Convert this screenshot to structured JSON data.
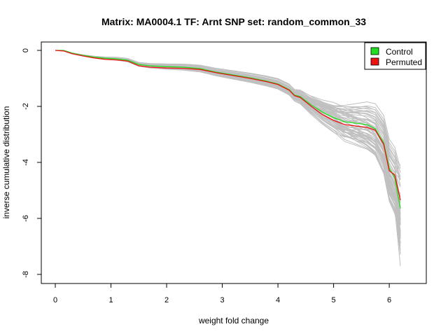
{
  "chart_data": {
    "type": "line",
    "title": "Matrix: MA0004.1 TF: Arnt SNP set: random_common_33",
    "xlabel": "weight fold change",
    "ylabel": "inverse cumulative distribution",
    "xlim": [
      0,
      6.2
    ],
    "ylim": [
      -8,
      0
    ],
    "x_ticks": [
      0,
      1,
      2,
      3,
      4,
      5,
      6
    ],
    "y_ticks": [
      0,
      -2,
      -4,
      -6,
      -8
    ],
    "grid": false,
    "legend_position": "top-right",
    "legend": [
      "Control",
      "Permuted"
    ],
    "colors": {
      "control": "#22dd22",
      "permuted": "#ee1111",
      "background_series": "#c0c0c0"
    },
    "background_series_count": 60,
    "series": [
      {
        "name": "Control",
        "x": [
          0,
          0.15,
          0.3,
          0.5,
          0.7,
          0.9,
          1.1,
          1.3,
          1.5,
          1.7,
          2.0,
          2.3,
          2.6,
          2.9,
          3.2,
          3.5,
          3.8,
          4.0,
          4.2,
          4.3,
          4.4,
          4.6,
          4.8,
          5.0,
          5.2,
          5.4,
          5.6,
          5.75,
          5.9,
          6.0,
          6.1,
          6.2
        ],
        "y": [
          0,
          0,
          -0.1,
          -0.18,
          -0.24,
          -0.28,
          -0.3,
          -0.35,
          -0.5,
          -0.55,
          -0.58,
          -0.6,
          -0.65,
          -0.78,
          -0.88,
          -0.98,
          -1.1,
          -1.2,
          -1.4,
          -1.6,
          -1.65,
          -1.95,
          -2.2,
          -2.4,
          -2.55,
          -2.6,
          -2.65,
          -2.8,
          -3.3,
          -4.2,
          -4.55,
          -5.65
        ]
      },
      {
        "name": "Permuted",
        "x": [
          0,
          0.15,
          0.3,
          0.5,
          0.7,
          0.9,
          1.1,
          1.3,
          1.5,
          1.7,
          2.0,
          2.3,
          2.6,
          2.9,
          3.2,
          3.5,
          3.8,
          4.0,
          4.2,
          4.3,
          4.4,
          4.6,
          4.8,
          5.0,
          5.2,
          5.4,
          5.6,
          5.75,
          5.9,
          6.0,
          6.1,
          6.2
        ],
        "y": [
          0,
          -0.02,
          -0.12,
          -0.2,
          -0.27,
          -0.32,
          -0.34,
          -0.38,
          -0.55,
          -0.6,
          -0.63,
          -0.64,
          -0.68,
          -0.8,
          -0.9,
          -1.0,
          -1.12,
          -1.22,
          -1.42,
          -1.62,
          -1.68,
          -2.0,
          -2.3,
          -2.5,
          -2.65,
          -2.7,
          -2.75,
          -2.85,
          -3.35,
          -4.3,
          -4.45,
          -5.35
        ]
      }
    ]
  }
}
